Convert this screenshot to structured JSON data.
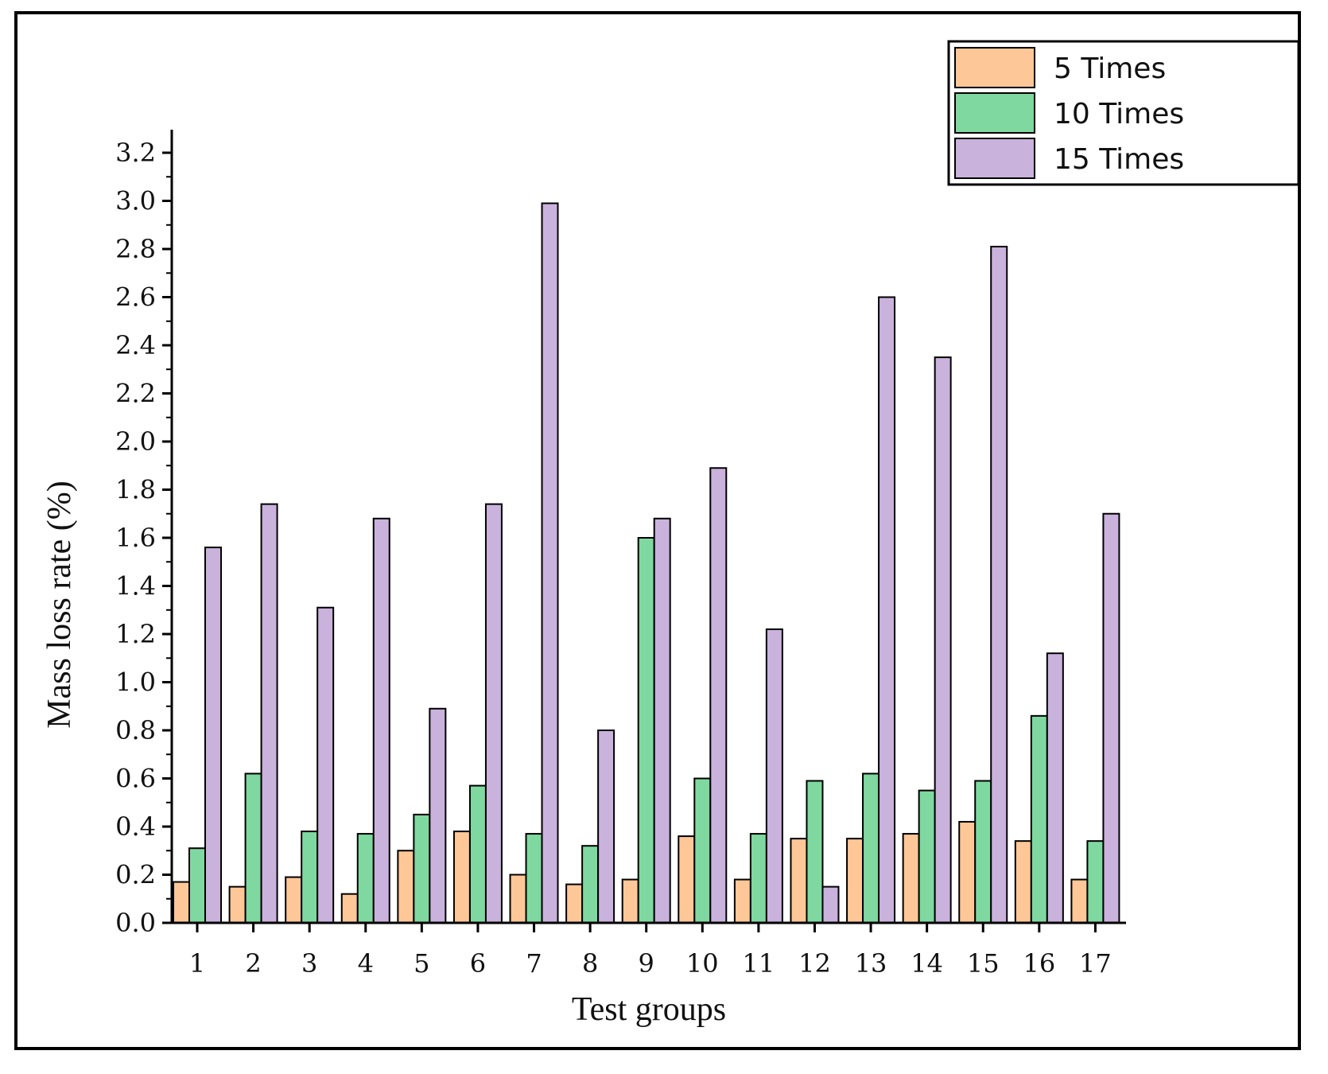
{
  "chart_data": {
    "type": "bar",
    "title": "",
    "xlabel": "Test groups",
    "ylabel": "Mass loss rate  (%)",
    "ylim": [
      0,
      3.3
    ],
    "yticks": [
      "0.0",
      "0.2",
      "0.4",
      "0.6",
      "0.8",
      "1.0",
      "1.2",
      "1.4",
      "1.6",
      "1.8",
      "2.0",
      "2.2",
      "2.4",
      "2.6",
      "2.8",
      "3.0",
      "3.2"
    ],
    "categories": [
      "1",
      "2",
      "3",
      "4",
      "5",
      "6",
      "7",
      "8",
      "9",
      "10",
      "11",
      "12",
      "13",
      "14",
      "15",
      "16",
      "17"
    ],
    "legend_position": "top-right",
    "series": [
      {
        "name": "5 Times",
        "color": "#FDC797",
        "values": [
          0.17,
          0.15,
          0.19,
          0.12,
          0.3,
          0.38,
          0.2,
          0.16,
          0.18,
          0.36,
          0.18,
          0.35,
          0.35,
          0.37,
          0.42,
          0.34,
          0.18
        ]
      },
      {
        "name": "10 Times",
        "color": "#7FD8A0",
        "values": [
          0.31,
          0.62,
          0.38,
          0.37,
          0.45,
          0.57,
          0.37,
          0.32,
          1.6,
          0.6,
          0.37,
          0.59,
          0.62,
          0.55,
          0.59,
          0.86,
          0.34
        ]
      },
      {
        "name": "15 Times",
        "color": "#C9B2DB",
        "values": [
          1.56,
          1.74,
          1.31,
          1.68,
          0.89,
          1.74,
          2.99,
          0.8,
          1.68,
          1.89,
          1.22,
          0.15,
          2.6,
          2.35,
          2.81,
          1.12,
          1.7
        ]
      }
    ]
  }
}
